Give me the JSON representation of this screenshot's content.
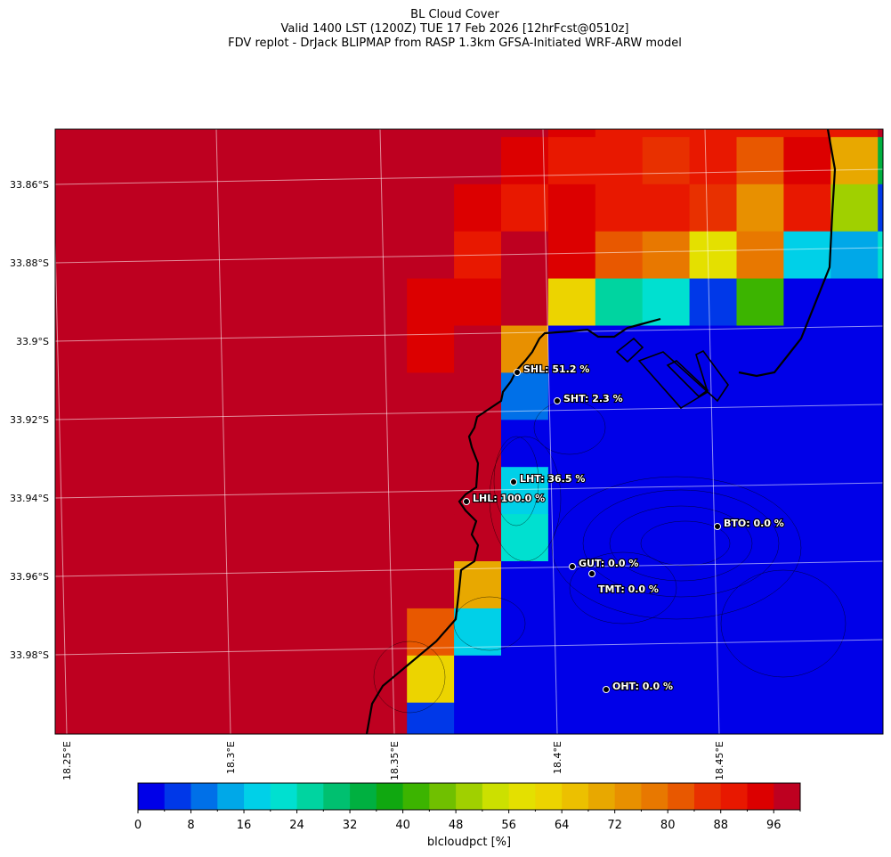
{
  "title": {
    "line1": "BL Cloud Cover",
    "line2": "Valid 1400 LST (1200Z) TUE 17 Feb 2026 [12hrFcst@0510z]",
    "line3": "FDV replot - DrJack BLIPMAP from RASP 1.3km GFSA-Initiated WRF-ARW model"
  },
  "axes": {
    "lat_ticks": [
      "33.86°S",
      "33.88°S",
      "33.9°S",
      "33.92°S",
      "33.94°S",
      "33.96°S",
      "33.98°S"
    ],
    "lon_ticks": [
      "18.25°E",
      "18.3°E",
      "18.35°E",
      "18.4°E",
      "18.45°E"
    ]
  },
  "colorbar": {
    "label": "blcloudpct [%]",
    "ticks": [
      "0",
      "8",
      "16",
      "24",
      "32",
      "40",
      "48",
      "56",
      "64",
      "72",
      "80",
      "88",
      "96"
    ],
    "range": [
      0,
      100
    ],
    "step": 4,
    "colors": [
      "#0000e8",
      "#0038e8",
      "#0070e8",
      "#00a8e8",
      "#00d0e8",
      "#00e0d0",
      "#00d4a0",
      "#00c070",
      "#00b040",
      "#10a810",
      "#3cb400",
      "#70c000",
      "#a0d000",
      "#cce000",
      "#e4e000",
      "#ecd400",
      "#ecc000",
      "#e8a800",
      "#e89000",
      "#e87800",
      "#e85800",
      "#e83000",
      "#e81800",
      "#dc0000",
      "#be0020"
    ]
  },
  "chart_data": {
    "type": "heatmap",
    "variable": "blcloudpct [%]",
    "grid_pct": [
      [
        98,
        98,
        98,
        98,
        98,
        98,
        98,
        98,
        98,
        98,
        98,
        94,
        90,
        90,
        90,
        90,
        90,
        90,
        98
      ],
      [
        98,
        98,
        98,
        98,
        98,
        98,
        98,
        98,
        98,
        98,
        94,
        90,
        90,
        86,
        90,
        82,
        94,
        70,
        34
      ],
      [
        98,
        98,
        98,
        98,
        98,
        98,
        98,
        98,
        98,
        94,
        90,
        94,
        90,
        90,
        86,
        74,
        90,
        50,
        6
      ],
      [
        98,
        98,
        98,
        98,
        98,
        98,
        98,
        98,
        98,
        90,
        98,
        94,
        82,
        78,
        58,
        78,
        18,
        14,
        22
      ],
      [
        98,
        98,
        98,
        98,
        98,
        98,
        98,
        98,
        94,
        94,
        98,
        62,
        26,
        22,
        6,
        42,
        2,
        2,
        2
      ],
      [
        98,
        98,
        98,
        98,
        98,
        98,
        98,
        98,
        94,
        98,
        74,
        2,
        2,
        2,
        2,
        2,
        2,
        2,
        2
      ],
      [
        98,
        98,
        98,
        98,
        98,
        98,
        98,
        98,
        98,
        98,
        10,
        2,
        2,
        2,
        2,
        2,
        2,
        2,
        2
      ],
      [
        98,
        98,
        98,
        98,
        98,
        98,
        98,
        98,
        98,
        98,
        2,
        2,
        2,
        2,
        2,
        2,
        2,
        2,
        2
      ],
      [
        98,
        98,
        98,
        98,
        98,
        98,
        98,
        98,
        98,
        98,
        18,
        2,
        2,
        2,
        2,
        2,
        2,
        2,
        2
      ],
      [
        98,
        98,
        98,
        98,
        98,
        98,
        98,
        98,
        98,
        98,
        22,
        2,
        2,
        2,
        2,
        2,
        2,
        2,
        2
      ],
      [
        98,
        98,
        98,
        98,
        98,
        98,
        98,
        98,
        98,
        70,
        2,
        2,
        2,
        2,
        2,
        2,
        2,
        2,
        2
      ],
      [
        98,
        98,
        98,
        98,
        98,
        98,
        98,
        98,
        82,
        18,
        2,
        2,
        2,
        2,
        2,
        2,
        2,
        2,
        2
      ],
      [
        98,
        98,
        98,
        98,
        98,
        98,
        98,
        98,
        62,
        2,
        2,
        2,
        2,
        2,
        2,
        2,
        2,
        2,
        2
      ],
      [
        98,
        98,
        98,
        98,
        98,
        98,
        98,
        98,
        6,
        2,
        2,
        2,
        2,
        2,
        2,
        2,
        2,
        2,
        2
      ]
    ]
  },
  "stations": [
    {
      "label": "SHL: 51.2 %"
    },
    {
      "label": "SHT: 2.3 %"
    },
    {
      "label": "LHT: 36.5 %"
    },
    {
      "label": "LHL: 100.0 %"
    },
    {
      "label": "BTO: 0.0 %"
    },
    {
      "label": "GUT: 0.0 %"
    },
    {
      "label": "TMT: 0.0 %"
    },
    {
      "label": "OHT: 0.0 %"
    }
  ]
}
